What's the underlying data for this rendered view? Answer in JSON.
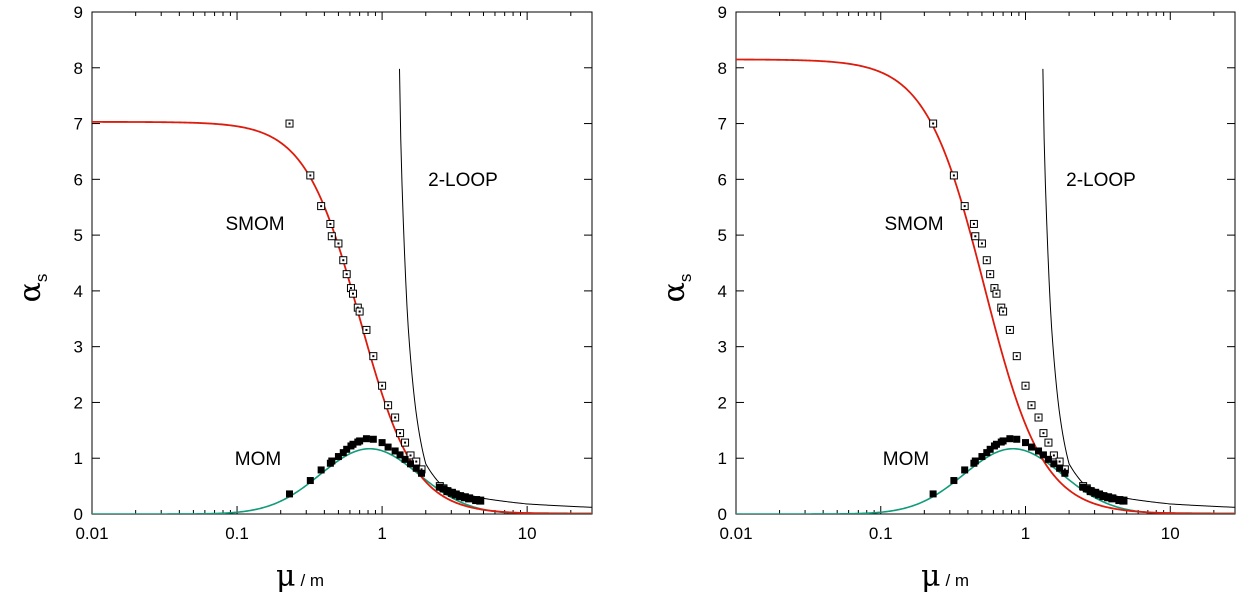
{
  "figure": {
    "xlabel_main": "μ",
    "xlabel_unit": "/ m",
    "ylabel_main": "α",
    "ylabel_sub": "s"
  },
  "colors": {
    "smom_curve": "#dd1c0e",
    "mom_curve": "#109b7a",
    "two_loop_curve": "#000000",
    "points": "#000000"
  },
  "chart_data": [
    {
      "type": "scatter",
      "scale": {
        "x": "log",
        "y": "linear"
      },
      "xlim": [
        0.01,
        28
      ],
      "ylim": [
        0,
        9
      ],
      "x_ticks": [
        0.01,
        0.1,
        1,
        10
      ],
      "x_tick_labels": [
        "0.01",
        "0.1",
        "1",
        "10"
      ],
      "y_ticks": [
        0,
        1,
        2,
        3,
        4,
        5,
        6,
        7,
        8,
        9
      ],
      "y_tick_labels": [
        "0",
        "1",
        "2",
        "3",
        "4",
        "5",
        "6",
        "7",
        "8",
        "9"
      ],
      "grid": false,
      "annotations": [
        "SMOM",
        "MOM",
        "2-LOOP"
      ],
      "smom_curve": {
        "A": 7.03,
        "xh": 0.7,
        "n": 2.3
      },
      "mom_curve": {
        "A": 1.17,
        "x0": 0.82,
        "s": 0.34,
        "tail_A": 0.255,
        "tail_x0": 0.055
      },
      "two_loop_curve": {
        "asymptote": 1.27,
        "points": [
          [
            1.3,
            9.0
          ],
          [
            1.35,
            6.5
          ],
          [
            1.5,
            3.5
          ],
          [
            1.7,
            1.9
          ],
          [
            2.0,
            0.9
          ],
          [
            2.5,
            0.55
          ],
          [
            3.5,
            0.38
          ],
          [
            5,
            0.28
          ],
          [
            10,
            0.18
          ],
          [
            28,
            0.12
          ]
        ]
      },
      "smom_points": [
        [
          0.23,
          7.0
        ],
        [
          0.32,
          6.07
        ],
        [
          0.38,
          5.52
        ],
        [
          0.44,
          5.2
        ],
        [
          0.45,
          4.98
        ],
        [
          0.5,
          4.85
        ],
        [
          0.54,
          4.55
        ],
        [
          0.57,
          4.3
        ],
        [
          0.61,
          4.05
        ],
        [
          0.63,
          3.95
        ],
        [
          0.68,
          3.7
        ],
        [
          0.7,
          3.63
        ],
        [
          0.78,
          3.3
        ],
        [
          0.87,
          2.83
        ],
        [
          1.0,
          2.3
        ],
        [
          1.1,
          1.95
        ],
        [
          1.23,
          1.73
        ],
        [
          1.33,
          1.45
        ],
        [
          1.44,
          1.28
        ],
        [
          1.57,
          1.05
        ],
        [
          1.72,
          0.94
        ],
        [
          1.87,
          0.8
        ],
        [
          2.5,
          0.5
        ],
        [
          2.65,
          0.46
        ],
        [
          2.82,
          0.41
        ],
        [
          3.03,
          0.38
        ],
        [
          3.22,
          0.35
        ],
        [
          3.45,
          0.32
        ],
        [
          3.72,
          0.3
        ],
        [
          3.98,
          0.28
        ],
        [
          4.45,
          0.25
        ],
        [
          4.75,
          0.24
        ]
      ],
      "mom_points": [
        [
          0.23,
          0.36
        ],
        [
          0.32,
          0.6
        ],
        [
          0.38,
          0.79
        ],
        [
          0.44,
          0.91
        ],
        [
          0.45,
          0.95
        ],
        [
          0.5,
          1.03
        ],
        [
          0.54,
          1.1
        ],
        [
          0.57,
          1.16
        ],
        [
          0.61,
          1.22
        ],
        [
          0.63,
          1.25
        ],
        [
          0.68,
          1.29
        ],
        [
          0.7,
          1.31
        ],
        [
          0.78,
          1.35
        ],
        [
          0.87,
          1.34
        ],
        [
          1.0,
          1.28
        ],
        [
          1.1,
          1.2
        ],
        [
          1.23,
          1.13
        ],
        [
          1.33,
          1.06
        ],
        [
          1.44,
          0.98
        ],
        [
          1.57,
          0.9
        ],
        [
          1.72,
          0.82
        ],
        [
          1.87,
          0.73
        ],
        [
          2.5,
          0.48
        ],
        [
          2.65,
          0.45
        ],
        [
          2.82,
          0.41
        ],
        [
          3.03,
          0.38
        ],
        [
          3.22,
          0.35
        ],
        [
          3.45,
          0.32
        ],
        [
          3.72,
          0.3
        ],
        [
          3.98,
          0.28
        ],
        [
          4.45,
          0.25
        ],
        [
          4.75,
          0.24
        ]
      ]
    },
    {
      "type": "scatter",
      "scale": {
        "x": "log",
        "y": "linear"
      },
      "xlim": [
        0.01,
        28
      ],
      "ylim": [
        0,
        9
      ],
      "x_ticks": [
        0.01,
        0.1,
        1,
        10
      ],
      "x_tick_labels": [
        "0.01",
        "0.1",
        "1",
        "10"
      ],
      "y_ticks": [
        0,
        1,
        2,
        3,
        4,
        5,
        6,
        7,
        8,
        9
      ],
      "y_tick_labels": [
        "0",
        "1",
        "2",
        "3",
        "4",
        "5",
        "6",
        "7",
        "8",
        "9"
      ],
      "grid": false,
      "annotations": [
        "SMOM",
        "MOM",
        "2-LOOP"
      ],
      "smom_curve": {
        "A": 8.15,
        "xh": 0.52,
        "n": 2.15
      },
      "mom_curve": {
        "A": 1.17,
        "x0": 0.82,
        "s": 0.34,
        "tail_A": 0.255,
        "tail_x0": 0.055
      },
      "two_loop_curve": {
        "asymptote": 1.27,
        "points": [
          [
            1.3,
            9.0
          ],
          [
            1.35,
            6.5
          ],
          [
            1.5,
            3.5
          ],
          [
            1.7,
            1.9
          ],
          [
            2.0,
            0.9
          ],
          [
            2.5,
            0.55
          ],
          [
            3.5,
            0.38
          ],
          [
            5,
            0.28
          ],
          [
            10,
            0.18
          ],
          [
            28,
            0.12
          ]
        ]
      },
      "smom_points": [
        [
          0.23,
          7.0
        ],
        [
          0.32,
          6.07
        ],
        [
          0.38,
          5.52
        ],
        [
          0.44,
          5.2
        ],
        [
          0.45,
          4.98
        ],
        [
          0.5,
          4.85
        ],
        [
          0.54,
          4.55
        ],
        [
          0.57,
          4.3
        ],
        [
          0.61,
          4.05
        ],
        [
          0.63,
          3.95
        ],
        [
          0.68,
          3.7
        ],
        [
          0.7,
          3.63
        ],
        [
          0.78,
          3.3
        ],
        [
          0.87,
          2.83
        ],
        [
          1.0,
          2.3
        ],
        [
          1.1,
          1.95
        ],
        [
          1.23,
          1.73
        ],
        [
          1.33,
          1.45
        ],
        [
          1.44,
          1.28
        ],
        [
          1.57,
          1.05
        ],
        [
          1.72,
          0.94
        ],
        [
          1.87,
          0.8
        ],
        [
          2.5,
          0.5
        ],
        [
          2.65,
          0.46
        ],
        [
          2.82,
          0.41
        ],
        [
          3.03,
          0.38
        ],
        [
          3.22,
          0.35
        ],
        [
          3.45,
          0.32
        ],
        [
          3.72,
          0.3
        ],
        [
          3.98,
          0.28
        ],
        [
          4.45,
          0.25
        ],
        [
          4.75,
          0.24
        ]
      ],
      "mom_points": [
        [
          0.23,
          0.36
        ],
        [
          0.32,
          0.6
        ],
        [
          0.38,
          0.79
        ],
        [
          0.44,
          0.91
        ],
        [
          0.45,
          0.95
        ],
        [
          0.5,
          1.03
        ],
        [
          0.54,
          1.1
        ],
        [
          0.57,
          1.16
        ],
        [
          0.61,
          1.22
        ],
        [
          0.63,
          1.25
        ],
        [
          0.68,
          1.29
        ],
        [
          0.7,
          1.31
        ],
        [
          0.78,
          1.35
        ],
        [
          0.87,
          1.34
        ],
        [
          1.0,
          1.28
        ],
        [
          1.1,
          1.2
        ],
        [
          1.23,
          1.13
        ],
        [
          1.33,
          1.06
        ],
        [
          1.44,
          0.98
        ],
        [
          1.57,
          0.9
        ],
        [
          1.72,
          0.82
        ],
        [
          1.87,
          0.73
        ],
        [
          2.5,
          0.48
        ],
        [
          2.65,
          0.45
        ],
        [
          2.82,
          0.41
        ],
        [
          3.03,
          0.38
        ],
        [
          3.22,
          0.35
        ],
        [
          3.45,
          0.32
        ],
        [
          3.72,
          0.3
        ],
        [
          3.98,
          0.28
        ],
        [
          4.45,
          0.25
        ],
        [
          4.75,
          0.24
        ]
      ]
    }
  ]
}
